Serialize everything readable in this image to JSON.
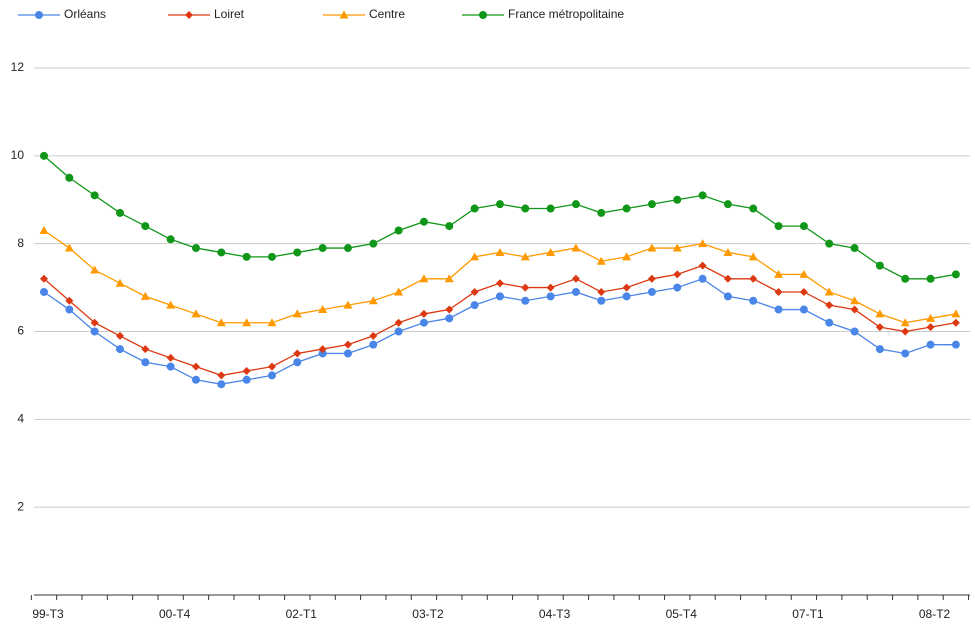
{
  "chart_data": {
    "type": "line",
    "categories": [
      "99-T3",
      null,
      null,
      null,
      null,
      "00-T4",
      null,
      null,
      null,
      null,
      "02-T1",
      null,
      null,
      null,
      null,
      "03-T2",
      null,
      null,
      null,
      null,
      "04-T3",
      null,
      null,
      null,
      null,
      "05-T4",
      null,
      null,
      null,
      null,
      "07-T1",
      null,
      null,
      null,
      null,
      "08-T2",
      null
    ],
    "series": [
      {
        "name": "Orléans",
        "color": "#4a86e8",
        "marker": "circle",
        "values": [
          6.9,
          6.5,
          6.0,
          5.6,
          5.3,
          5.2,
          4.9,
          4.8,
          4.9,
          5.0,
          5.3,
          5.5,
          5.5,
          5.7,
          6.0,
          6.2,
          6.3,
          6.6,
          6.8,
          6.7,
          6.8,
          6.9,
          6.7,
          6.8,
          6.9,
          7.0,
          7.2,
          6.8,
          6.7,
          6.5,
          6.5,
          6.2,
          6.0,
          5.6,
          5.5,
          5.7,
          5.7
        ]
      },
      {
        "name": "Loiret",
        "color": "#dc3912",
        "marker": "diamond",
        "values": [
          7.2,
          6.7,
          6.2,
          5.9,
          5.6,
          5.4,
          5.2,
          5.0,
          5.1,
          5.2,
          5.5,
          5.6,
          5.7,
          5.9,
          6.2,
          6.4,
          6.5,
          6.9,
          7.1,
          7.0,
          7.0,
          7.2,
          6.9,
          7.0,
          7.2,
          7.3,
          7.5,
          7.2,
          7.2,
          6.9,
          6.9,
          6.6,
          6.5,
          6.1,
          6.0,
          6.1,
          6.2
        ]
      },
      {
        "name": "Centre",
        "color": "#ff9900",
        "marker": "triangle",
        "values": [
          8.3,
          7.9,
          7.4,
          7.1,
          6.8,
          6.6,
          6.4,
          6.2,
          6.2,
          6.2,
          6.4,
          6.5,
          6.6,
          6.7,
          6.9,
          7.2,
          7.2,
          7.7,
          7.8,
          7.7,
          7.8,
          7.9,
          7.6,
          7.7,
          7.9,
          7.9,
          8.0,
          7.8,
          7.7,
          7.3,
          7.3,
          6.9,
          6.7,
          6.4,
          6.2,
          6.3,
          6.4
        ]
      },
      {
        "name": "France métropolitaine",
        "color": "#109618",
        "marker": "circle",
        "values": [
          10.0,
          9.5,
          9.1,
          8.7,
          8.4,
          8.1,
          7.9,
          7.8,
          7.7,
          7.7,
          7.8,
          7.9,
          7.9,
          8.0,
          8.3,
          8.5,
          8.4,
          8.8,
          8.9,
          8.8,
          8.8,
          8.9,
          8.7,
          8.8,
          8.9,
          9.0,
          9.1,
          8.9,
          8.8,
          8.4,
          8.4,
          8.0,
          7.9,
          7.5,
          7.2,
          7.2,
          7.3
        ]
      }
    ],
    "ylim": [
      0,
      12
    ],
    "yticks": [
      2,
      4,
      6,
      8,
      10,
      12
    ],
    "grid": true,
    "legend": "top"
  }
}
